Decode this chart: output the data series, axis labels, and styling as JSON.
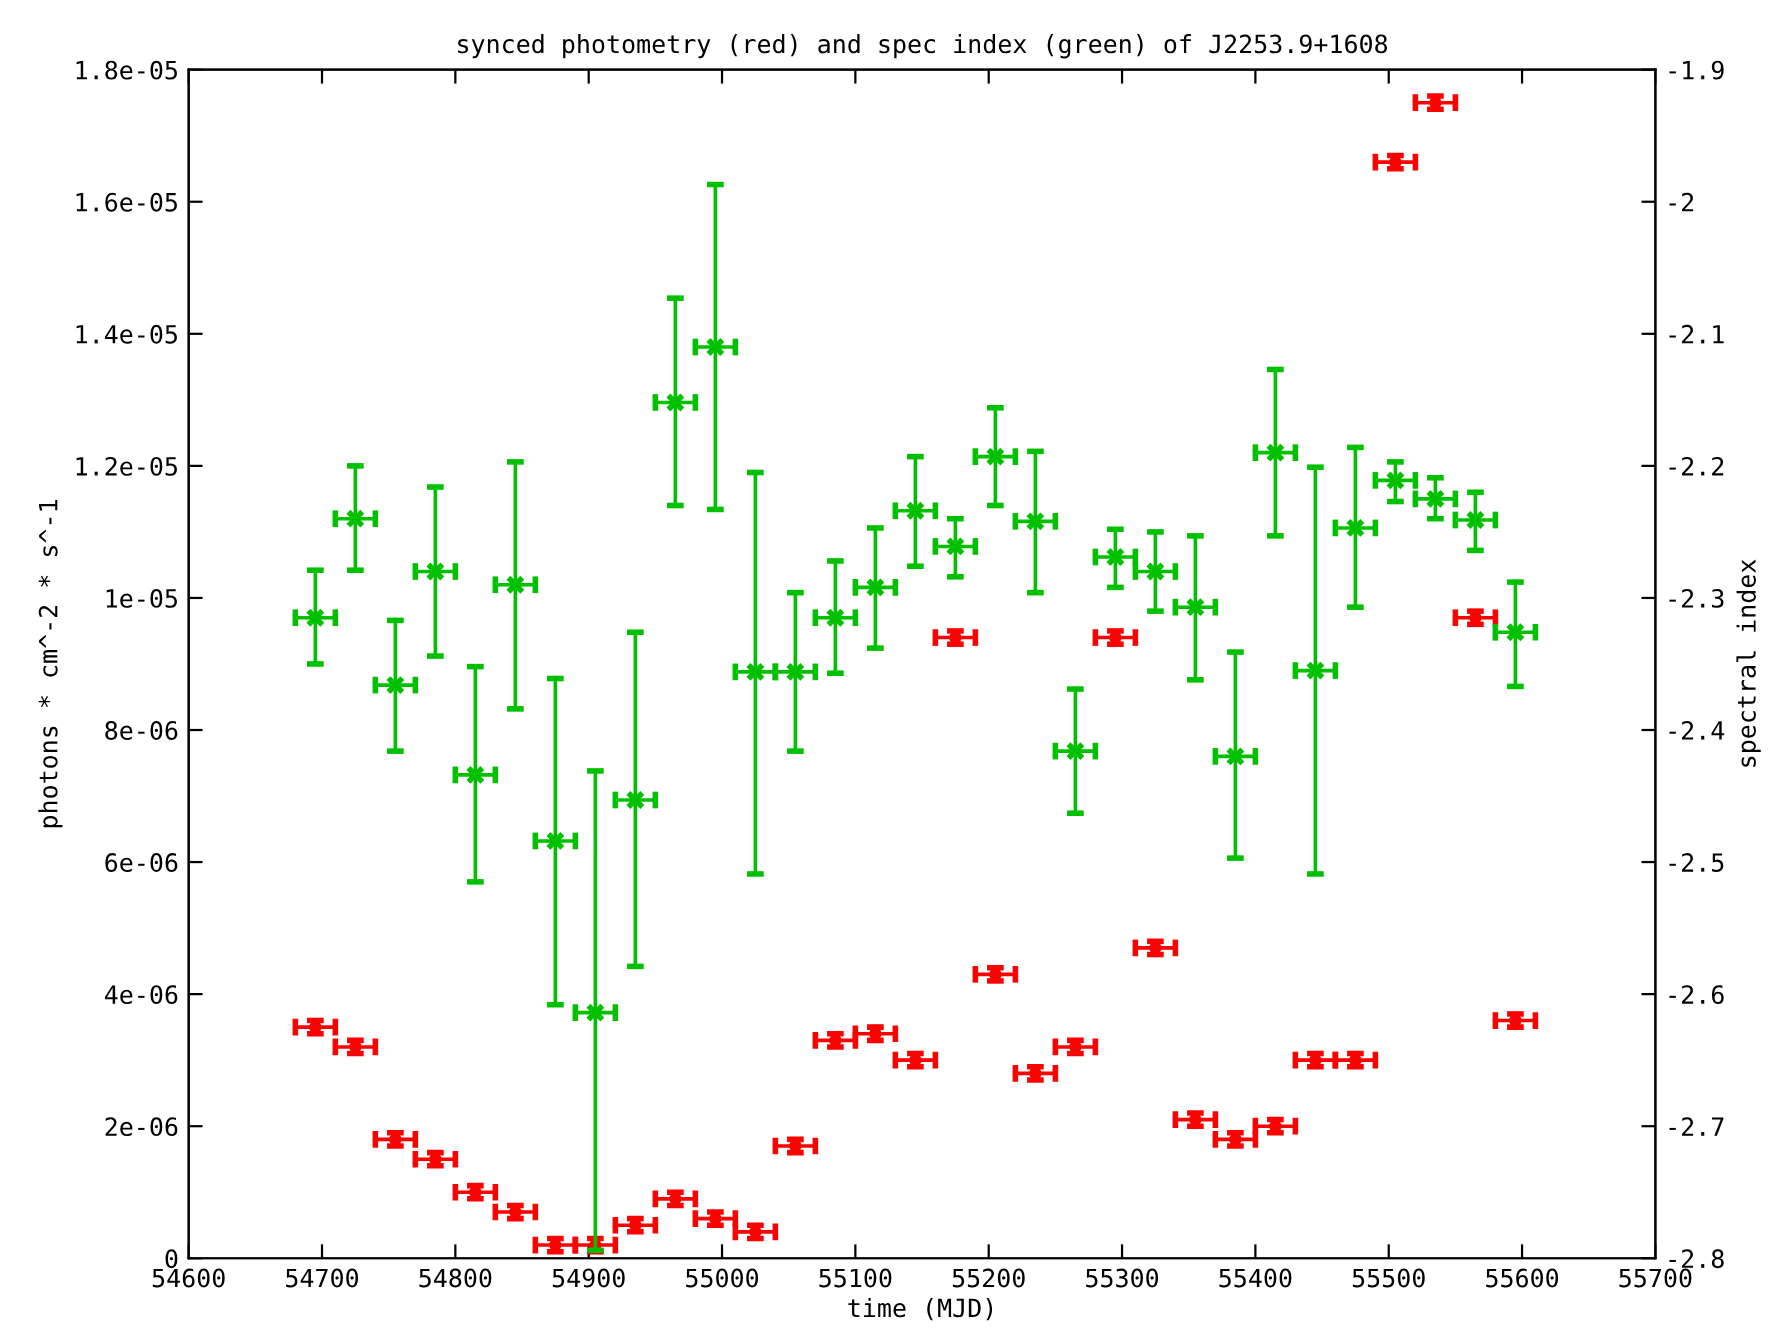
{
  "chart_data": {
    "type": "scatter",
    "title": "synced photometry (red) and spec index (green) of J2253.9+1608",
    "xlabel": "time (MJD)",
    "ylabel": "photons * cm^-2 * s^-1",
    "y2label": "spectral index",
    "x": [
      54695,
      54725,
      54755,
      54785,
      54815,
      54845,
      54875,
      54905,
      54935,
      54965,
      54995,
      55025,
      55055,
      55085,
      55115,
      55145,
      55175,
      55205,
      55235,
      55265,
      55295,
      55325,
      55355,
      55385,
      55415,
      55445,
      55475,
      55505,
      55535,
      55565,
      55595
    ],
    "xlim": [
      54600,
      55700
    ],
    "xticks": [
      54600,
      54700,
      54800,
      54900,
      55000,
      55100,
      55200,
      55300,
      55400,
      55500,
      55600,
      55700
    ],
    "ylim": [
      0,
      1.8e-05
    ],
    "yticks": [
      {
        "value": 0,
        "label": "0"
      },
      {
        "value": 2e-06,
        "label": "2e-06"
      },
      {
        "value": 4e-06,
        "label": "4e-06"
      },
      {
        "value": 6e-06,
        "label": "6e-06"
      },
      {
        "value": 8e-06,
        "label": "8e-06"
      },
      {
        "value": 1e-05,
        "label": "1e-05"
      },
      {
        "value": 1.2e-05,
        "label": "1.2e-05"
      },
      {
        "value": 1.4e-05,
        "label": "1.4e-05"
      },
      {
        "value": 1.6e-05,
        "label": "1.6e-05"
      },
      {
        "value": 1.8e-05,
        "label": "1.8e-05"
      }
    ],
    "y2lim": [
      -2.8,
      -1.9
    ],
    "y2ticks": [
      -2.8,
      -2.7,
      -2.6,
      -2.5,
      -2.4,
      -2.3,
      -2.2,
      -2.1,
      -2,
      -1.9
    ],
    "grid": false,
    "series": [
      {
        "color": "#ff0000",
        "marker": "circle",
        "values": [
          3.5e-06,
          3.2e-06,
          1.8e-06,
          1.5e-06,
          1e-06,
          7e-07,
          2e-07,
          2e-07,
          5e-07,
          9e-07,
          6e-07,
          4e-07,
          1.7e-06,
          3.3e-06,
          3.4e-06,
          3e-06,
          9.4e-06,
          4.3e-06,
          2.8e-06,
          3.2e-06,
          9.4e-06,
          4.7e-06,
          2.1e-06,
          1.8e-06,
          2e-06,
          3e-06,
          3e-06,
          1.66e-05,
          1.75e-05,
          9.7e-06,
          3.6e-06
        ],
        "errors": [
          1e-07,
          1e-07,
          1e-07,
          1e-07,
          1e-07,
          1e-07,
          1e-07,
          1e-07,
          1e-07,
          1e-07,
          1e-07,
          1e-07,
          1e-07,
          1e-07,
          1e-07,
          1e-07,
          1e-07,
          1e-07,
          1e-07,
          1e-07,
          1e-07,
          1e-07,
          1e-07,
          1e-07,
          1e-07,
          1e-07,
          1e-07,
          1e-07,
          1e-07,
          1e-07,
          1e-07
        ],
        "xerrors": [
          15,
          15,
          15,
          15,
          15,
          15,
          15,
          15,
          15,
          15,
          15,
          15,
          15,
          15,
          15,
          15,
          15,
          15,
          15,
          15,
          15,
          15,
          15,
          15,
          15,
          15,
          15,
          15,
          15,
          15,
          15
        ]
      },
      {
        "color": "#00c000",
        "marker": "cross",
        "axis": "y2",
        "values": [
          -2.315,
          -2.24,
          -2.366,
          -2.28,
          -2.434,
          -2.29,
          -2.484,
          -2.614,
          -2.453,
          -2.152,
          -2.11,
          -2.356,
          -2.356,
          -2.315,
          -2.292,
          -2.234,
          -2.261,
          -2.193,
          -2.242,
          -2.416,
          -2.269,
          -2.28,
          -2.307,
          -2.42,
          -2.19,
          -2.355,
          -2.247,
          -2.211,
          -2.225,
          -2.241,
          -2.326
        ],
        "errors": [
          [
            -2.35,
            -2.279
          ],
          [
            -2.279,
            -2.2
          ],
          [
            -2.416,
            -2.317
          ],
          [
            -2.344,
            -2.216
          ],
          [
            -2.515,
            -2.352
          ],
          [
            -2.384,
            -2.197
          ],
          [
            -2.608,
            -2.361
          ],
          [
            -2.794,
            -2.431
          ],
          [
            -2.579,
            -2.326
          ],
          [
            -2.23,
            -2.073
          ],
          [
            -2.233,
            -1.987
          ],
          [
            -2.509,
            -2.205
          ],
          [
            -2.416,
            -2.296
          ],
          [
            -2.357,
            -2.272
          ],
          [
            -2.338,
            -2.247
          ],
          [
            -2.276,
            -2.193
          ],
          [
            -2.284,
            -2.24
          ],
          [
            -2.23,
            -2.156
          ],
          [
            -2.296,
            -2.189
          ],
          [
            -2.463,
            -2.369
          ],
          [
            -2.292,
            -2.248
          ],
          [
            -2.31,
            -2.25
          ],
          [
            -2.362,
            -2.253
          ],
          [
            -2.497,
            -2.341
          ],
          [
            -2.253,
            -2.127
          ],
          [
            -2.509,
            -2.201
          ],
          [
            -2.307,
            -2.186
          ],
          [
            -2.227,
            -2.197
          ],
          [
            -2.24,
            -2.209
          ],
          [
            -2.264,
            -2.22
          ],
          [
            -2.367,
            -2.288
          ]
        ],
        "xerrors": [
          15,
          15,
          15,
          15,
          15,
          15,
          15,
          15,
          15,
          15,
          15,
          15,
          15,
          15,
          15,
          15,
          15,
          15,
          15,
          15,
          15,
          15,
          15,
          15,
          15,
          15,
          15,
          15,
          15,
          15,
          15
        ]
      }
    ]
  }
}
